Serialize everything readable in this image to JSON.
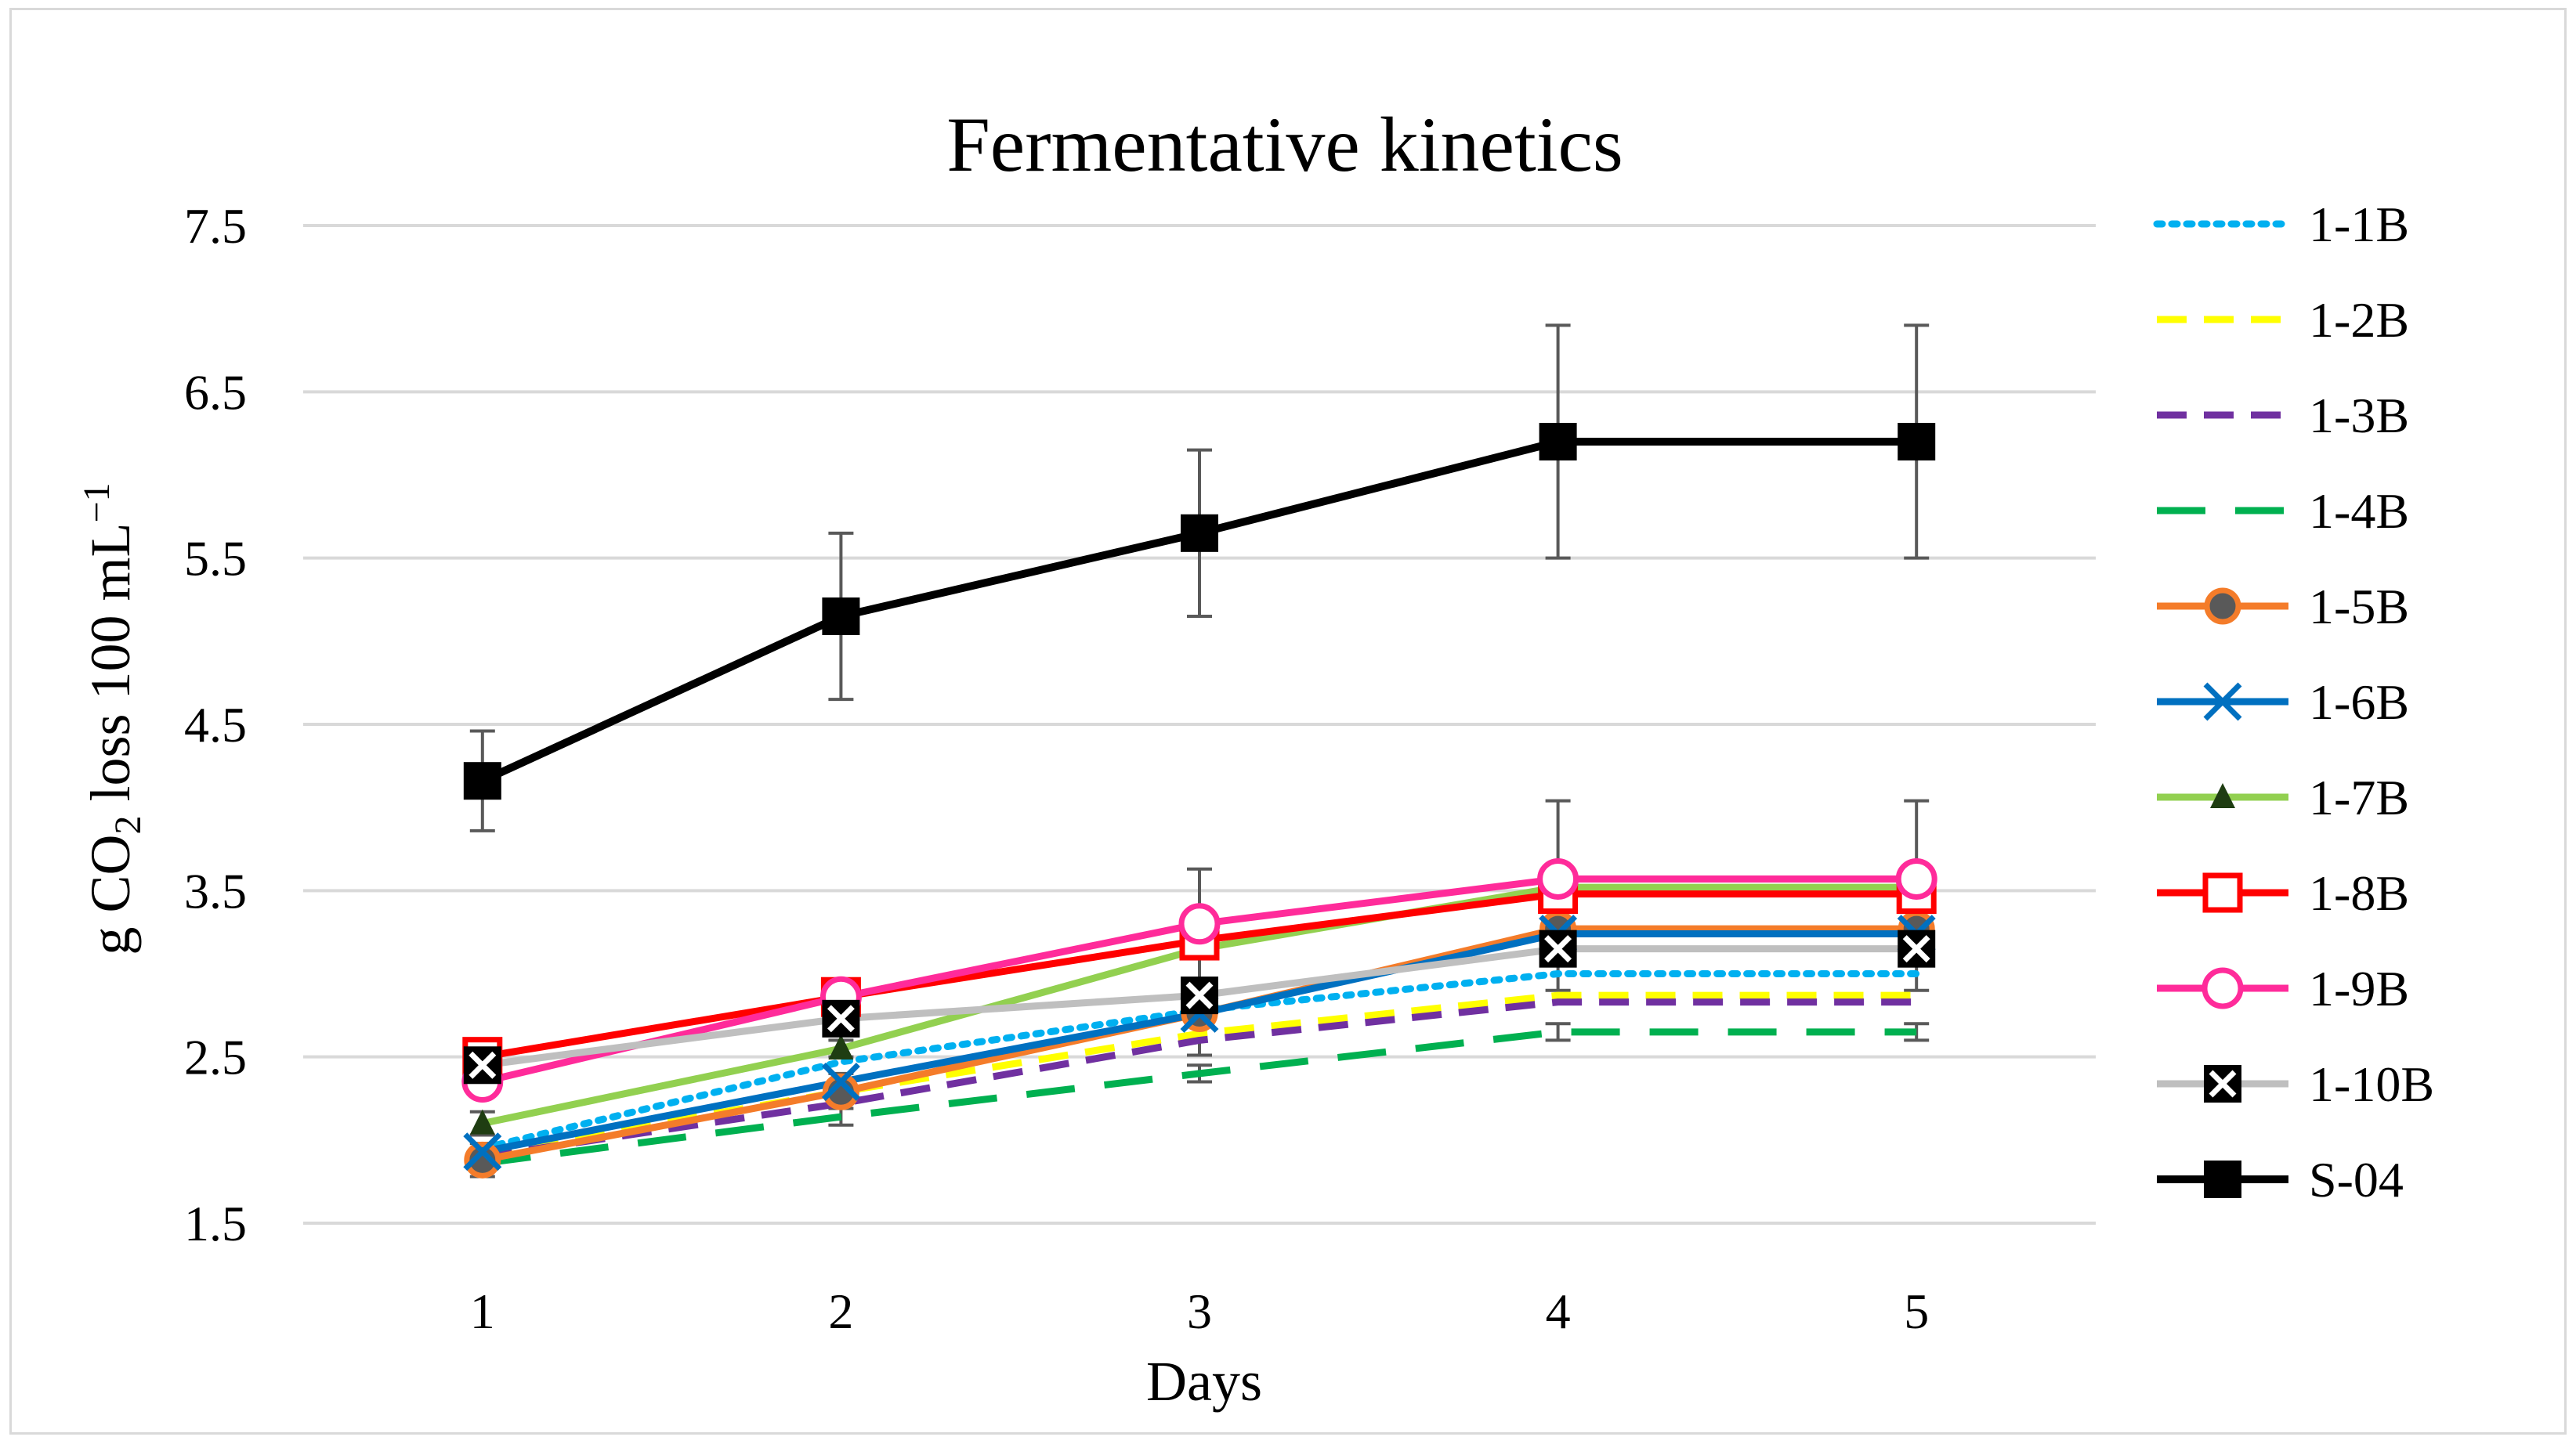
{
  "chart_data": {
    "type": "line",
    "title": "Fermentative kinetics",
    "xlabel": "Days",
    "ylabel": {
      "prefix": "g CO",
      "subscript": "2",
      "suffix": " loss 100 mL",
      "superscript": "−1"
    },
    "categories": [
      "1",
      "2",
      "3",
      "4",
      "5"
    ],
    "x": [
      1,
      2,
      3,
      4,
      5
    ],
    "ylim": [
      1.5,
      7.5
    ],
    "yticks": [
      "1.5",
      "2.5",
      "3.5",
      "4.5",
      "5.5",
      "6.5",
      "7.5"
    ],
    "grid": true,
    "legend_position": "right",
    "series": [
      {
        "name": "1-1B",
        "color": "#00b0f0",
        "dash": "dot",
        "marker": "none",
        "values": [
          1.95,
          2.47,
          2.78,
          3.0,
          3.0
        ],
        "errors": [
          0,
          0,
          0,
          0,
          0
        ]
      },
      {
        "name": "1-2B",
        "color": "#ffff00",
        "dash": "dash",
        "marker": "none",
        "values": [
          1.92,
          2.29,
          2.64,
          2.87,
          2.87
        ],
        "errors": [
          0,
          0,
          0,
          0,
          0
        ]
      },
      {
        "name": "1-3B",
        "color": "#7030a0",
        "dash": "dash",
        "marker": "none",
        "values": [
          1.9,
          2.22,
          2.6,
          2.83,
          2.83
        ],
        "errors": [
          0,
          0,
          0,
          0,
          0
        ]
      },
      {
        "name": "1-4B",
        "color": "#00b050",
        "dash": "longdash",
        "marker": "none",
        "values": [
          1.86,
          2.14,
          2.4,
          2.65,
          2.65
        ],
        "errors": [
          0.08,
          0.05,
          0.05,
          0.05,
          0.05
        ]
      },
      {
        "name": "1-5B",
        "color": "#f47c2a",
        "dash": "solid",
        "marker": "circle-filled",
        "values": [
          1.88,
          2.29,
          2.76,
          3.27,
          3.27
        ],
        "errors": [
          0,
          0,
          0,
          0,
          0
        ]
      },
      {
        "name": "1-6B",
        "color": "#0070c0",
        "dash": "solid",
        "marker": "x",
        "values": [
          1.93,
          2.35,
          2.76,
          3.24,
          3.24
        ],
        "errors": [
          0.05,
          0.05,
          0.05,
          0.05,
          0.05
        ]
      },
      {
        "name": "1-7B",
        "color": "#92d050",
        "dash": "solid",
        "marker": "triangle",
        "values": [
          2.1,
          2.55,
          3.15,
          3.52,
          3.52
        ],
        "errors": [
          0.07,
          0.05,
          0.05,
          0.05,
          0.05
        ]
      },
      {
        "name": "1-8B",
        "color": "#ff0000",
        "dash": "solid",
        "marker": "square-open",
        "values": [
          2.5,
          2.86,
          3.2,
          3.48,
          3.48
        ],
        "errors": [
          0.05,
          0.05,
          0.05,
          0.05,
          0.05
        ]
      },
      {
        "name": "1-9B",
        "color": "#ff2b9a",
        "dash": "solid",
        "marker": "circle-open",
        "values": [
          2.35,
          2.86,
          3.3,
          3.57,
          3.57
        ],
        "errors": [
          0.05,
          0.05,
          0.33,
          0.47,
          0.47
        ]
      },
      {
        "name": "1-10B",
        "color": "#bfbfbf",
        "dash": "solid",
        "marker": "square-x",
        "values": [
          2.45,
          2.73,
          2.87,
          3.15,
          3.15
        ],
        "errors": [
          0.05,
          0.05,
          0.36,
          0.25,
          0.25
        ]
      },
      {
        "name": "S-04",
        "color": "#000000",
        "dash": "solid",
        "marker": "square-filled",
        "values": [
          4.16,
          5.15,
          5.65,
          6.2,
          6.2
        ],
        "errors": [
          0.3,
          0.5,
          0.5,
          0.7,
          0.7
        ]
      }
    ]
  }
}
